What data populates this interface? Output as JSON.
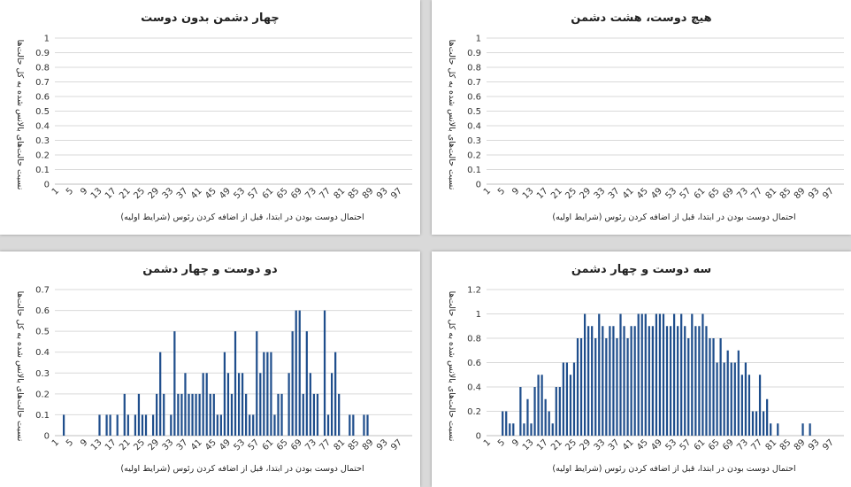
{
  "chart_data": [
    {
      "type": "bar",
      "title": "چهار دشمن بدون دوست",
      "xlabel": "احتمال دوست بودن در ابتدا، قبل از اضافه کردن رئوس  (شرایط اولیه)",
      "ylabel": "نسبت حالت‌های بالانس شده به کل حالت‌ها",
      "ylim": [
        0,
        1
      ],
      "yticks": [
        "0",
        "0.1",
        "0.2",
        "0.3",
        "0.4",
        "0.5",
        "0.6",
        "0.7",
        "0.8",
        "0.9",
        "1"
      ],
      "xticks": [
        "1",
        "5",
        "9",
        "13",
        "17",
        "21",
        "25",
        "29",
        "33",
        "37",
        "41",
        "45",
        "49",
        "53",
        "57",
        "61",
        "65",
        "69",
        "73",
        "77",
        "81",
        "85",
        "89",
        "93",
        "97"
      ],
      "x_start": 1,
      "x_end": 100,
      "values": [],
      "grid": true,
      "color": "#1f4e8c"
    },
    {
      "type": "bar",
      "title": "هیچ دوست، هشت دشمن",
      "xlabel": "احتمال دوست بودن در ابتدا، قبل از اضافه کردن رئوس  (شرایط اولیه)",
      "ylabel": "نسبت حالت‌های بالانس شده به کل حالت‌ها",
      "ylim": [
        0,
        1
      ],
      "yticks": [
        "0",
        "0.1",
        "0.2",
        "0.3",
        "0.4",
        "0.5",
        "0.6",
        "0.7",
        "0.8",
        "0.9",
        "1"
      ],
      "xticks": [
        "1",
        "5",
        "9",
        "13",
        "17",
        "21",
        "25",
        "29",
        "33",
        "37",
        "41",
        "45",
        "49",
        "53",
        "57",
        "61",
        "65",
        "69",
        "73",
        "77",
        "81",
        "85",
        "89",
        "93",
        "97"
      ],
      "x_start": 1,
      "x_end": 100,
      "values": [],
      "grid": true,
      "color": "#1f4e8c"
    },
    {
      "type": "bar",
      "title": "دو دوست و چهار دشمن",
      "xlabel": "احتمال دوست بودن در ابتدا، قبل از اضافه کردن رئوس  (شرایط اولیه)",
      "ylabel": "نسبت حالت‌های بالانس شده به کل حالت‌ها",
      "ylim": [
        0,
        0.7
      ],
      "yticks": [
        "0",
        "0.1",
        "0.2",
        "0.3",
        "0.4",
        "0.5",
        "0.6",
        "0.7"
      ],
      "xticks": [
        "1",
        "5",
        "9",
        "13",
        "17",
        "21",
        "25",
        "29",
        "33",
        "37",
        "41",
        "45",
        "49",
        "53",
        "57",
        "61",
        "65",
        "69",
        "73",
        "77",
        "81",
        "85",
        "89",
        "93",
        "97"
      ],
      "x_start": 1,
      "x_end": 100,
      "values": [
        [
          3,
          0.1
        ],
        [
          13,
          0.1
        ],
        [
          15,
          0.1
        ],
        [
          16,
          0.1
        ],
        [
          18,
          0.1
        ],
        [
          20,
          0.2
        ],
        [
          21,
          0.1
        ],
        [
          23,
          0.1
        ],
        [
          24,
          0.2
        ],
        [
          25,
          0.1
        ],
        [
          26,
          0.1
        ],
        [
          28,
          0.1
        ],
        [
          29,
          0.2
        ],
        [
          30,
          0.4
        ],
        [
          31,
          0.2
        ],
        [
          33,
          0.1
        ],
        [
          34,
          0.5
        ],
        [
          35,
          0.2
        ],
        [
          36,
          0.2
        ],
        [
          37,
          0.3
        ],
        [
          38,
          0.2
        ],
        [
          39,
          0.2
        ],
        [
          40,
          0.2
        ],
        [
          41,
          0.2
        ],
        [
          42,
          0.3
        ],
        [
          43,
          0.3
        ],
        [
          44,
          0.2
        ],
        [
          45,
          0.2
        ],
        [
          46,
          0.1
        ],
        [
          47,
          0.1
        ],
        [
          48,
          0.4
        ],
        [
          49,
          0.3
        ],
        [
          50,
          0.2
        ],
        [
          51,
          0.5
        ],
        [
          52,
          0.3
        ],
        [
          53,
          0.3
        ],
        [
          54,
          0.2
        ],
        [
          55,
          0.1
        ],
        [
          56,
          0.1
        ],
        [
          57,
          0.5
        ],
        [
          58,
          0.3
        ],
        [
          59,
          0.4
        ],
        [
          60,
          0.4
        ],
        [
          61,
          0.4
        ],
        [
          62,
          0.1
        ],
        [
          63,
          0.2
        ],
        [
          64,
          0.2
        ],
        [
          66,
          0.3
        ],
        [
          67,
          0.5
        ],
        [
          68,
          0.6
        ],
        [
          69,
          0.6
        ],
        [
          70,
          0.2
        ],
        [
          71,
          0.5
        ],
        [
          72,
          0.3
        ],
        [
          73,
          0.2
        ],
        [
          74,
          0.2
        ],
        [
          76,
          0.6
        ],
        [
          77,
          0.1
        ],
        [
          78,
          0.3
        ],
        [
          79,
          0.4
        ],
        [
          80,
          0.2
        ],
        [
          83,
          0.1
        ],
        [
          84,
          0.1
        ],
        [
          87,
          0.1
        ],
        [
          88,
          0.1
        ]
      ],
      "grid": true,
      "color": "#1f4e8c"
    },
    {
      "type": "bar",
      "title": "سه دوست و چهار دشمن",
      "xlabel": "احتمال دوست بودن در ابتدا، قبل از اضافه کردن رئوس  (شرایط اولیه)",
      "ylabel": "نسبت حالت‌های بالانس شده به کل حالت‌ها",
      "ylim": [
        0,
        1.2
      ],
      "yticks": [
        "0",
        "0.2",
        "0.4",
        "0.6",
        "0.8",
        "1",
        "1.2"
      ],
      "xticks": [
        "1",
        "5",
        "9",
        "13",
        "17",
        "21",
        "25",
        "29",
        "33",
        "37",
        "41",
        "45",
        "49",
        "53",
        "57",
        "61",
        "65",
        "69",
        "73",
        "77",
        "81",
        "85",
        "89",
        "93",
        "97"
      ],
      "x_start": 1,
      "x_end": 100,
      "values": [
        [
          5,
          0.2
        ],
        [
          6,
          0.2
        ],
        [
          7,
          0.1
        ],
        [
          8,
          0.1
        ],
        [
          10,
          0.4
        ],
        [
          11,
          0.1
        ],
        [
          12,
          0.3
        ],
        [
          13,
          0.1
        ],
        [
          14,
          0.4
        ],
        [
          15,
          0.5
        ],
        [
          16,
          0.5
        ],
        [
          17,
          0.3
        ],
        [
          18,
          0.2
        ],
        [
          19,
          0.1
        ],
        [
          20,
          0.4
        ],
        [
          21,
          0.4
        ],
        [
          22,
          0.6
        ],
        [
          23,
          0.6
        ],
        [
          24,
          0.5
        ],
        [
          25,
          0.6
        ],
        [
          26,
          0.8
        ],
        [
          27,
          0.8
        ],
        [
          28,
          1.0
        ],
        [
          29,
          0.9
        ],
        [
          30,
          0.9
        ],
        [
          31,
          0.8
        ],
        [
          32,
          1.0
        ],
        [
          33,
          0.9
        ],
        [
          34,
          0.8
        ],
        [
          35,
          0.9
        ],
        [
          36,
          0.9
        ],
        [
          37,
          0.8
        ],
        [
          38,
          1.0
        ],
        [
          39,
          0.9
        ],
        [
          40,
          0.8
        ],
        [
          41,
          0.9
        ],
        [
          42,
          0.9
        ],
        [
          43,
          1.0
        ],
        [
          44,
          1.0
        ],
        [
          45,
          1.0
        ],
        [
          46,
          0.9
        ],
        [
          47,
          0.9
        ],
        [
          48,
          1.0
        ],
        [
          49,
          1.0
        ],
        [
          50,
          1.0
        ],
        [
          51,
          0.9
        ],
        [
          52,
          0.9
        ],
        [
          53,
          1.0
        ],
        [
          54,
          0.9
        ],
        [
          55,
          1.0
        ],
        [
          56,
          0.9
        ],
        [
          57,
          0.8
        ],
        [
          58,
          1.0
        ],
        [
          59,
          0.9
        ],
        [
          60,
          0.9
        ],
        [
          61,
          1.0
        ],
        [
          62,
          0.9
        ],
        [
          63,
          0.8
        ],
        [
          64,
          0.8
        ],
        [
          65,
          0.6
        ],
        [
          66,
          0.8
        ],
        [
          67,
          0.6
        ],
        [
          68,
          0.7
        ],
        [
          69,
          0.6
        ],
        [
          70,
          0.6
        ],
        [
          71,
          0.7
        ],
        [
          72,
          0.5
        ],
        [
          73,
          0.6
        ],
        [
          74,
          0.5
        ],
        [
          75,
          0.2
        ],
        [
          76,
          0.2
        ],
        [
          77,
          0.5
        ],
        [
          78,
          0.2
        ],
        [
          79,
          0.3
        ],
        [
          80,
          0.1
        ],
        [
          82,
          0.1
        ],
        [
          89,
          0.1
        ],
        [
          91,
          0.1
        ]
      ],
      "grid": true,
      "color": "#1f4e8c"
    }
  ]
}
